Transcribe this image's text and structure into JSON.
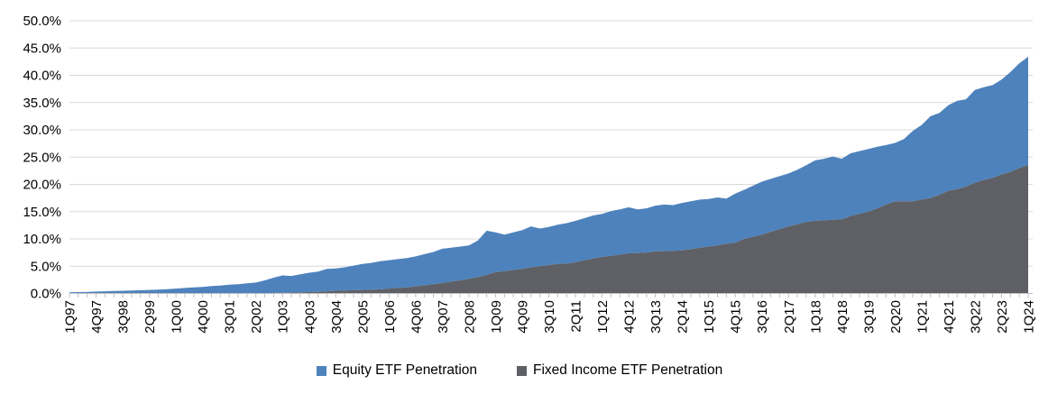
{
  "chart_data": {
    "type": "area",
    "stacked": true,
    "title": "",
    "x_frequency": "quarterly",
    "x_start": "1Q97",
    "x_end": "1Q24",
    "x_tick_interval": 3,
    "x_tick_labels": [
      "1Q97",
      "4Q97",
      "3Q98",
      "2Q99",
      "1Q00",
      "4Q00",
      "3Q01",
      "2Q02",
      "1Q03",
      "4Q03",
      "3Q04",
      "2Q05",
      "1Q06",
      "4Q06",
      "3Q07",
      "2Q08",
      "1Q09",
      "4Q09",
      "3Q10",
      "2Q11",
      "1Q12",
      "4Q12",
      "3Q13",
      "2Q14",
      "1Q15",
      "4Q15",
      "3Q16",
      "2Q17",
      "1Q18",
      "4Q18",
      "3Q19",
      "2Q20",
      "1Q21",
      "4Q21",
      "3Q22",
      "2Q23",
      "1Q24"
    ],
    "y_tick_labels": [
      "0.0%",
      "5.0%",
      "10.0%",
      "15.0%",
      "20.0%",
      "25.0%",
      "30.0%",
      "35.0%",
      "40.0%",
      "45.0%",
      "50.0%"
    ],
    "ylim": [
      0,
      50
    ],
    "y_unit": "percent",
    "grid": "horizontal",
    "legend_position": "bottom",
    "series": [
      {
        "name": "Equity ETF Penetration",
        "color": "#4E82BC",
        "stack_position": "top",
        "values": [
          0.2,
          0.25,
          0.3,
          0.35,
          0.4,
          0.45,
          0.5,
          0.55,
          0.6,
          0.65,
          0.7,
          0.8,
          0.9,
          1.0,
          1.1,
          1.2,
          1.35,
          1.45,
          1.6,
          1.7,
          1.85,
          2.0,
          2.35,
          2.8,
          3.2,
          3.05,
          3.3,
          3.55,
          3.7,
          4.1,
          4.1,
          4.25,
          4.5,
          4.75,
          4.9,
          5.15,
          5.2,
          5.3,
          5.4,
          5.5,
          5.7,
          5.9,
          6.3,
          6.2,
          6.2,
          6.1,
          6.7,
          8.1,
          7.3,
          6.7,
          6.9,
          7.1,
          7.5,
          6.9,
          7.0,
          7.2,
          7.4,
          7.6,
          7.7,
          7.9,
          7.9,
          8.2,
          8.3,
          8.45,
          8.0,
          8.1,
          8.4,
          8.55,
          8.4,
          8.7,
          8.8,
          8.8,
          8.7,
          8.8,
          8.3,
          9.0,
          9.0,
          9.35,
          9.7,
          9.7,
          9.7,
          9.7,
          10.0,
          10.4,
          11.1,
          11.3,
          11.6,
          11.1,
          11.5,
          11.5,
          11.5,
          11.3,
          10.9,
          10.7,
          11.4,
          12.9,
          13.7,
          15.0,
          15.0,
          15.7,
          16.2,
          16.0,
          17.0,
          17.0,
          17.0,
          17.4,
          18.3,
          19.2,
          19.9
        ]
      },
      {
        "name": "Fixed Income ETF Penetration",
        "color": "#5E6066",
        "stack_position": "bottom",
        "values": [
          0,
          0,
          0,
          0,
          0,
          0,
          0,
          0,
          0,
          0,
          0,
          0,
          0,
          0,
          0,
          0,
          0,
          0,
          0,
          0,
          0,
          0,
          0.05,
          0.1,
          0.1,
          0.15,
          0.2,
          0.25,
          0.3,
          0.4,
          0.5,
          0.55,
          0.6,
          0.65,
          0.7,
          0.75,
          0.9,
          1.0,
          1.1,
          1.3,
          1.5,
          1.7,
          1.9,
          2.2,
          2.4,
          2.7,
          3.0,
          3.4,
          3.9,
          4.1,
          4.3,
          4.5,
          4.8,
          5.0,
          5.2,
          5.4,
          5.5,
          5.7,
          6.1,
          6.4,
          6.7,
          6.9,
          7.1,
          7.35,
          7.4,
          7.5,
          7.7,
          7.75,
          7.8,
          7.9,
          8.1,
          8.4,
          8.6,
          8.8,
          9.1,
          9.3,
          10.0,
          10.4,
          10.8,
          11.3,
          11.8,
          12.3,
          12.7,
          13.1,
          13.3,
          13.4,
          13.5,
          13.6,
          14.2,
          14.6,
          15.0,
          15.6,
          16.3,
          16.9,
          16.9,
          16.9,
          17.2,
          17.5,
          18.1,
          18.8,
          19.1,
          19.6,
          20.3,
          20.8,
          21.2,
          21.8,
          22.3,
          23.0,
          23.5
        ]
      }
    ],
    "colors": {
      "gridline": "#D9D9D9",
      "axis": "#BFBFBF",
      "tick": "#BFBFBF",
      "label": "#000000",
      "background": "#FFFFFF"
    }
  }
}
